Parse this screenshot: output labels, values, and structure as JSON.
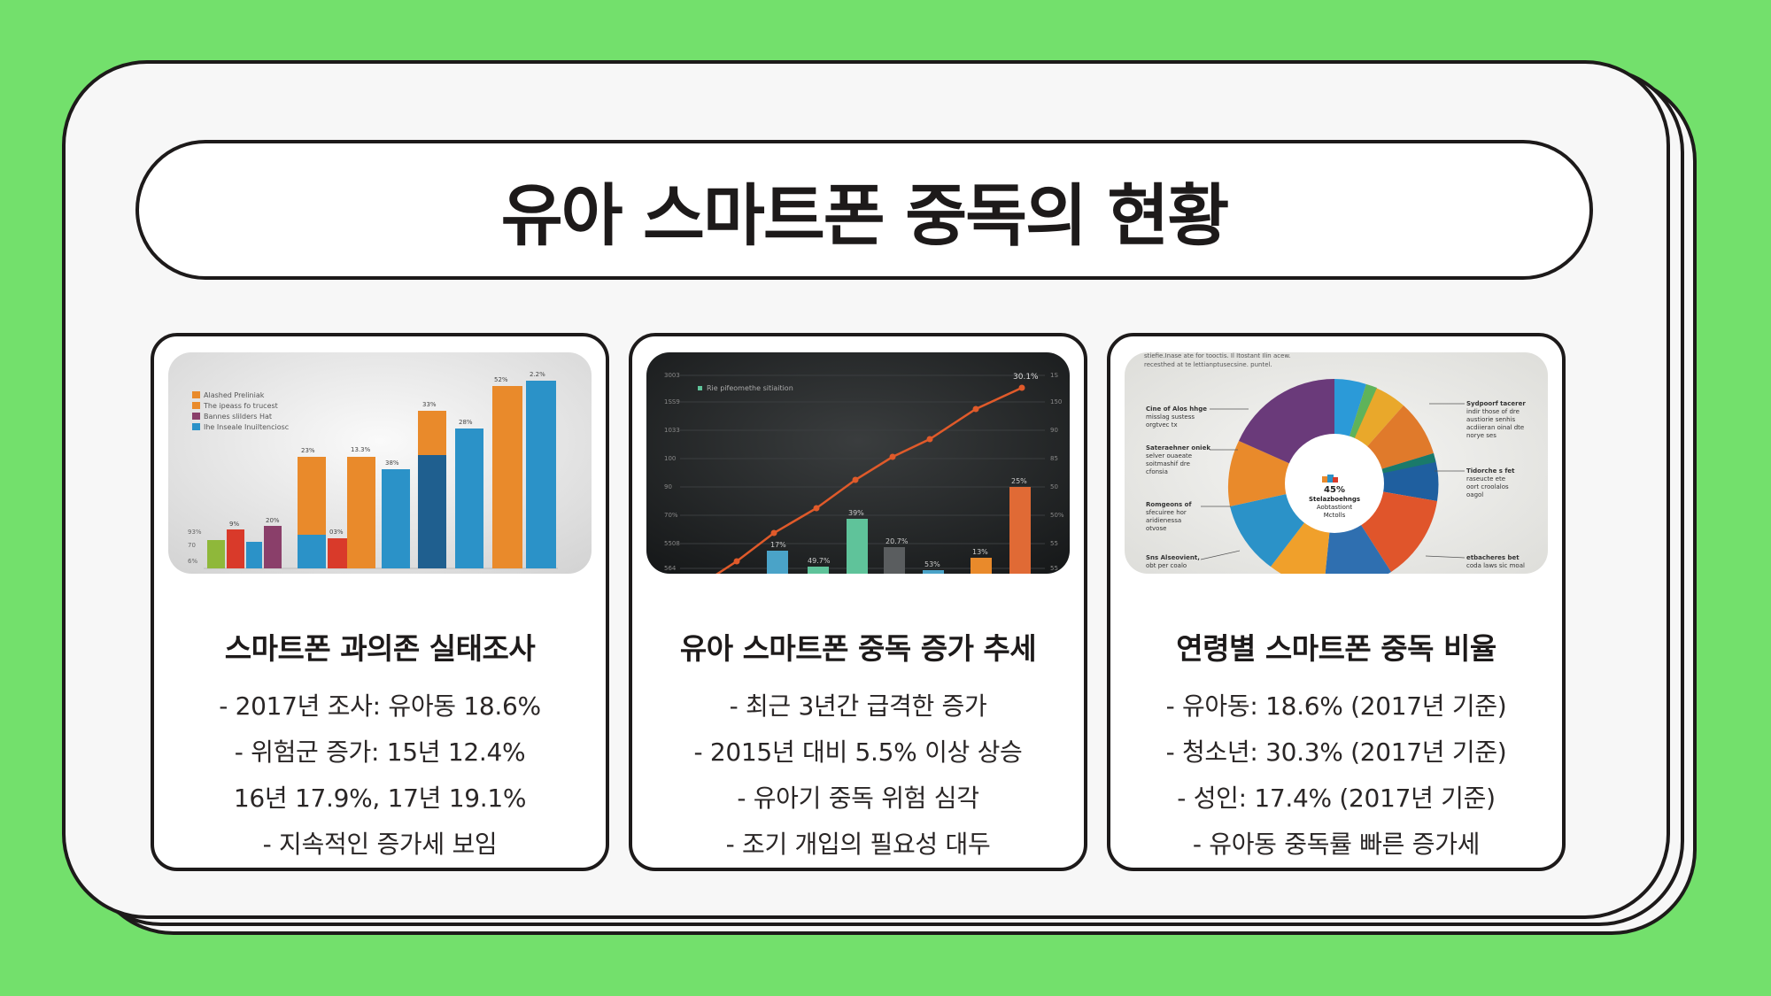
{
  "title": "유아 스마트폰 중독의 현황",
  "cards": [
    {
      "heading": "스마트폰 과의존 실태조사",
      "lines": [
        "- 2017년 조사: 유아동 18.6%",
        "- 위험군 증가: 15년 12.4%",
        "16년 17.9%, 17년 19.1%",
        "- 지속적인 증가세 보임"
      ],
      "image": {
        "legend": [
          "Alashed Preliniak",
          "The ipeass fo trucest",
          "Bannes slilders Hat",
          "Ihe Inseale Inuiltenciosc"
        ],
        "labels": [
          "9%",
          "20%",
          "23%",
          "13.3%",
          "03%",
          "38%",
          "33%",
          "28%",
          "52%",
          "2.2%",
          "93%",
          "70",
          "6%"
        ]
      }
    },
    {
      "heading": "유아 스마트폰 중독 증가 추세",
      "lines": [
        "- 최근 3년간 급격한 증가",
        "- 2015년 대비 5.5% 이상 상승",
        "- 유아기 중독 위험 심각",
        "- 조기 개입의 필요성 대두"
      ],
      "image": {
        "legend": "Rie pifeomethe sitiaition",
        "labels": [
          "30.1%",
          "39%",
          "20.7%",
          "13%",
          "25%",
          "17%",
          "49.7%",
          "53%"
        ],
        "yticks_left": [
          "3003",
          "1SS9",
          "1033",
          "100",
          "90",
          "70%",
          "5508",
          "564"
        ],
        "yticks_right": [
          "1S",
          "150",
          "90",
          "85",
          "50",
          "50%",
          "55",
          "55"
        ]
      }
    },
    {
      "heading": "연령별 스마트폰 중독 비율",
      "lines": [
        "- 유아동: 18.6% (2017년 기준)",
        "- 청소년: 30.3% (2017년 기준)",
        "- 성인: 17.4% (2017년 기준)",
        "- 유아동 중독률 빠른 증가세"
      ],
      "image": {
        "header": [
          "stiefie.Inase ate for tooctis. Il Itostant Ilin acew.",
          "recesthed at te lettianptusecsine. puntel."
        ],
        "center": [
          "45%",
          "Stelazboehngs",
          "Aobtastiont",
          "Mctolls"
        ],
        "left_notes": [
          "Cine of Alos hhge",
          "misslag sustess",
          "orgtvec tx",
          "Sateraehner oniek",
          "selver ouaeate",
          "soitmashif dre",
          "cfonsia",
          "Romgeons of",
          "sfecuiree hor",
          "aridienessa",
          "otvose",
          "Sns Alseovient,",
          "obt per coalo"
        ],
        "right_notes": [
          "Sydpoorf tacerer",
          "indir those of dre",
          "austiorie senhis",
          "acdiieran oinal dte",
          "norye ses",
          "Tidorche s fet",
          "raseucte ete",
          "oort croolalos",
          "oagol",
          "etbacheres bet",
          "coda laws sic moal"
        ]
      }
    }
  ],
  "colors": {
    "background": "#73e06c",
    "outline": "#1d1a1a",
    "sheet": "#f7f7f7",
    "orange": "#e98a2b",
    "blue": "#2b92c8",
    "red": "#d93a2a",
    "green": "#8fb83a",
    "purple": "#8a3f6a",
    "teal": "#5fc39a",
    "line": "#e05a2a"
  }
}
